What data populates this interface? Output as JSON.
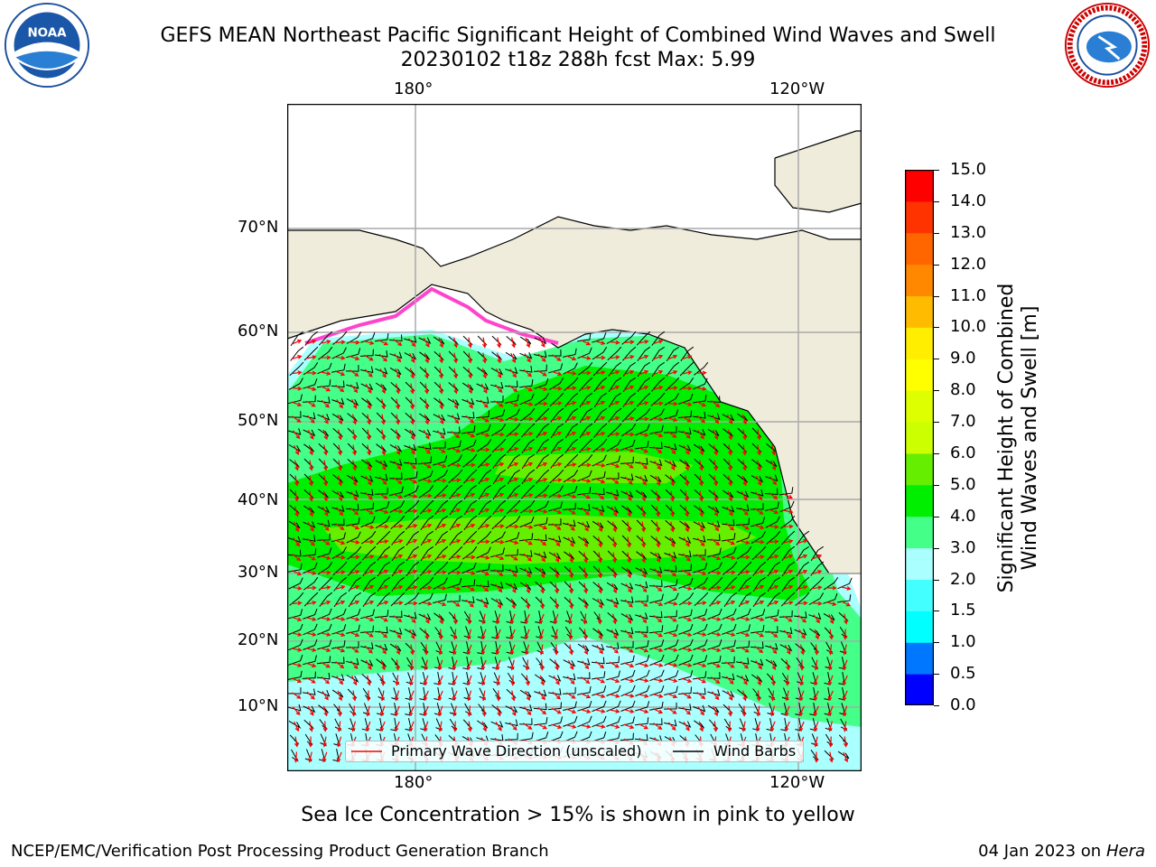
{
  "title_line1": "GEFS MEAN Northeast Pacific Significant Height of Combined Wind Waves and Swell",
  "title_line2": "20230102 t18z 288h fcst   Max: 5.99",
  "logos": {
    "left": "NOAA",
    "right": "NATIONAL WEATHER SERVICE"
  },
  "lon_ticks_top": [
    "180°",
    "120°W"
  ],
  "lon_ticks_bottom": [
    "180°",
    "120°W"
  ],
  "lat_ticks": [
    "70°N",
    "60°N",
    "50°N",
    "40°N",
    "30°N",
    "20°N",
    "10°N"
  ],
  "legend": {
    "wave": "Primary Wave Direction (unscaled)",
    "wind": "Wind Barbs"
  },
  "colorbar": {
    "label_line1": "Significant Height of Combined",
    "label_line2": "Wind Waves and Swell [m]",
    "ticks": [
      "0.0",
      "0.5",
      "1.0",
      "1.5",
      "2.0",
      "3.0",
      "4.0",
      "5.0",
      "6.0",
      "7.0",
      "8.0",
      "9.0",
      "10.0",
      "11.0",
      "12.0",
      "13.0",
      "14.0",
      "15.0"
    ],
    "colors": [
      "#0000ff",
      "#0077ff",
      "#00ffff",
      "#44ffff",
      "#aaffff",
      "#44ff88",
      "#00ee00",
      "#66ee00",
      "#ccff00",
      "#ddff00",
      "#ffff00",
      "#ffee00",
      "#ffbb00",
      "#ff8800",
      "#ff6600",
      "#ff3300",
      "#ff0000"
    ]
  },
  "colors": {
    "land": "#efecdc",
    "ocean_light": "#aaffff",
    "ocean_mid": "#44ff88",
    "ocean_high": "#00ee00",
    "ocean_peak": "#66ee00",
    "grid": "#aaaaaa",
    "wave_arrow": "#ff0000",
    "barb": "#000000"
  },
  "note": "Sea Ice Concentration > 15% is shown in pink to yellow",
  "footer_left": "NCEP/EMC/Verification Post Processing Product Generation Branch",
  "footer_right_date": "04 Jan 2023 on ",
  "footer_right_machine": "Hera"
}
